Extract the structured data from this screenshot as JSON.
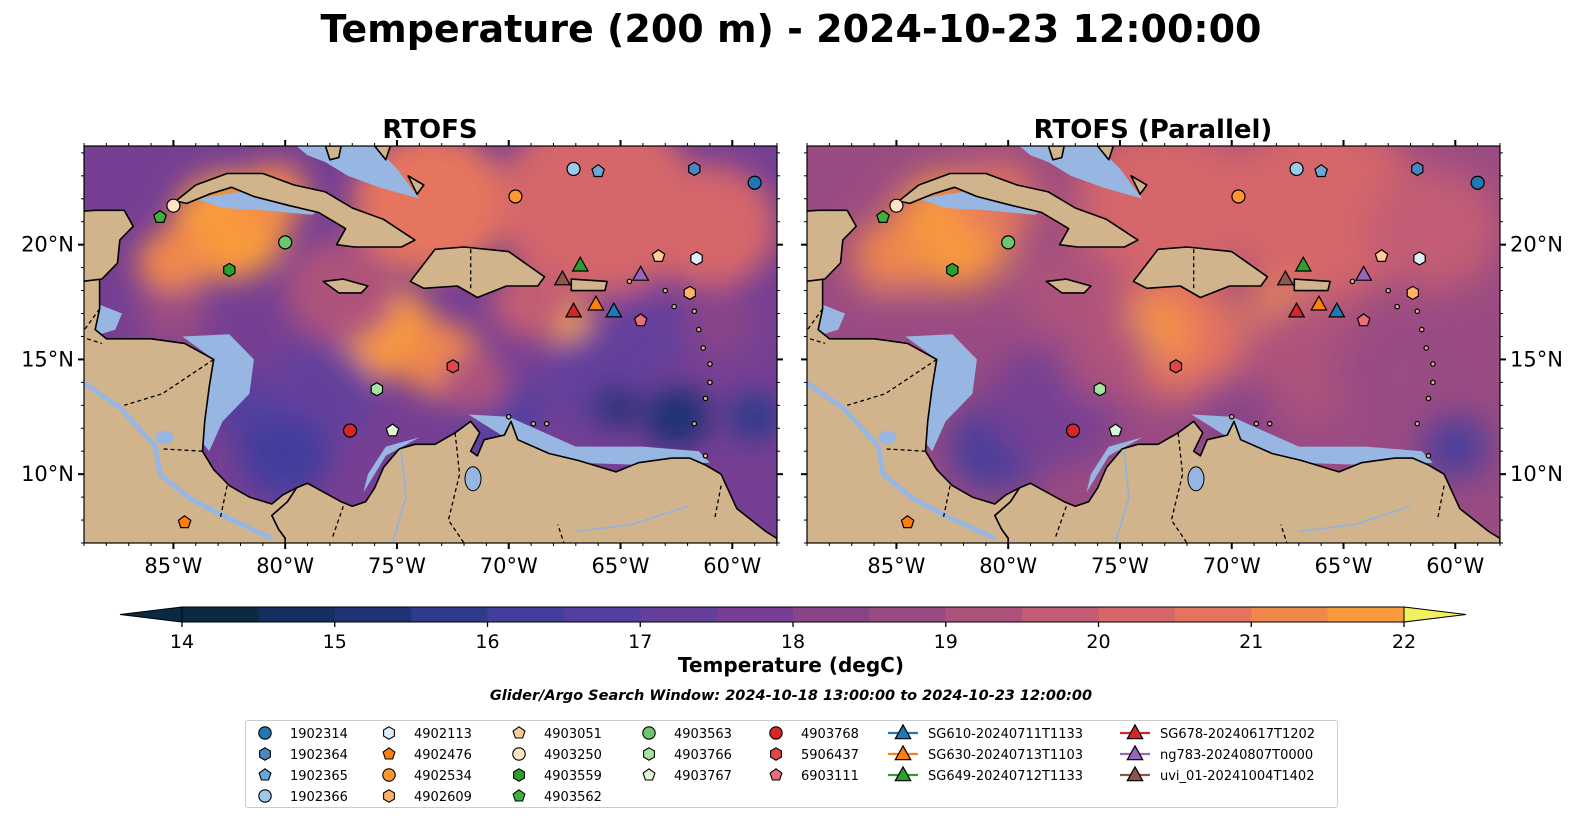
{
  "figure": {
    "title": "Temperature (200 m) - 2024-10-23 12:00:00",
    "search_window": "Glider/Argo Search Window: 2024-10-18 13:00:00 to 2024-10-23 12:00:00"
  },
  "panels": [
    {
      "title": "RTOFS",
      "variant": "operational"
    },
    {
      "title": "RTOFS (Parallel)",
      "variant": "parallel"
    }
  ],
  "map": {
    "extent": {
      "lon_min": -89,
      "lon_max": -58,
      "lat_min": 7,
      "lat_max": 24.3
    },
    "lon_ticks": [
      -85,
      -80,
      -75,
      -70,
      -65,
      -60
    ],
    "lon_tick_labels": [
      "85°W",
      "80°W",
      "75°W",
      "70°W",
      "65°W",
      "60°W"
    ],
    "lat_ticks": [
      10,
      15,
      20
    ],
    "lat_tick_labels": [
      "10°N",
      "15°N",
      "20°N"
    ],
    "land_color": "#d2b48c",
    "shelf_color": "#97b6e1",
    "deep_color": "#0b2235"
  },
  "colorbar": {
    "label": "Temperature (degC)",
    "ticks": [
      14,
      15,
      16,
      17,
      18,
      19,
      20,
      21,
      22
    ],
    "min": 14,
    "max": 22,
    "step": 0.5,
    "colors": [
      "#0a2a43",
      "#132f5e",
      "#1f3374",
      "#2f3a8c",
      "#423e9c",
      "#533f9f",
      "#643f9c",
      "#763f93",
      "#884488",
      "#9a4b82",
      "#ad527b",
      "#c25d74",
      "#d5666a",
      "#e5745e",
      "#f1884b",
      "#f99a3e",
      "#fcab3c",
      "#fcbd42",
      "#f7d651",
      "#f1f060"
    ],
    "extend": "both"
  },
  "legend": {
    "columns": [
      [
        {
          "id": "1902314",
          "marker": "circle",
          "color": "#1f77b4"
        },
        {
          "id": "1902364",
          "marker": "hexagon",
          "color": "#4a86bf"
        },
        {
          "id": "1902365",
          "marker": "pentagon",
          "color": "#6aa6d8"
        },
        {
          "id": "1902366",
          "marker": "circle",
          "color": "#9ecae9"
        }
      ],
      [
        {
          "id": "4902113",
          "marker": "hexagon",
          "color": "#dfeefb"
        },
        {
          "id": "4902476",
          "marker": "pentagon",
          "color": "#ff7f0e"
        },
        {
          "id": "4902534",
          "marker": "circle",
          "color": "#ff9630"
        },
        {
          "id": "4902609",
          "marker": "hexagon",
          "color": "#ffb266"
        }
      ],
      [
        {
          "id": "4903051",
          "marker": "pentagon",
          "color": "#ffcc99"
        },
        {
          "id": "4903250",
          "marker": "circle",
          "color": "#ffe3c7"
        },
        {
          "id": "4903559",
          "marker": "hexagon",
          "color": "#2ca02c"
        },
        {
          "id": "4903562",
          "marker": "pentagon",
          "color": "#3fb13f"
        }
      ],
      [
        {
          "id": "4903563",
          "marker": "circle",
          "color": "#6cc66c"
        },
        {
          "id": "4903766",
          "marker": "hexagon",
          "color": "#a6e2a0"
        },
        {
          "id": "4903767",
          "marker": "pentagon",
          "color": "#dcf6d6"
        }
      ],
      [
        {
          "id": "4903768",
          "marker": "circle",
          "color": "#d62728"
        },
        {
          "id": "5906437",
          "marker": "hexagon",
          "color": "#e04848"
        },
        {
          "id": "6903111",
          "marker": "pentagon",
          "color": "#e8707a"
        }
      ],
      [
        {
          "id": "SG610-20240711T1133",
          "marker": "triangle-line",
          "color": "#1f77b4"
        },
        {
          "id": "SG630-20240713T1103",
          "marker": "triangle-line",
          "color": "#ff7f0e"
        },
        {
          "id": "SG649-20240712T1133",
          "marker": "triangle-line",
          "color": "#2ca02c"
        }
      ],
      [
        {
          "id": "SG678-20240617T1202",
          "marker": "triangle-line",
          "color": "#d62728"
        },
        {
          "id": "ng783-20240807T0000",
          "marker": "triangle-line",
          "color": "#9467bd"
        },
        {
          "id": "uvi_01-20241004T1402",
          "marker": "triangle-line",
          "color": "#8c564b"
        }
      ]
    ]
  },
  "platforms": [
    {
      "id": "1902314",
      "lon": -59.0,
      "lat": 22.7
    },
    {
      "id": "1902364",
      "lon": -61.7,
      "lat": 23.3
    },
    {
      "id": "1902365",
      "lon": -66.0,
      "lat": 23.2
    },
    {
      "id": "1902366",
      "lon": -67.1,
      "lat": 23.3
    },
    {
      "id": "4902113",
      "lon": -61.6,
      "lat": 19.4
    },
    {
      "id": "4902476",
      "lon": -84.5,
      "lat": 7.9
    },
    {
      "id": "4902534",
      "lon": -69.7,
      "lat": 22.1
    },
    {
      "id": "4902609",
      "lon": -61.9,
      "lat": 17.9
    },
    {
      "id": "4903051",
      "lon": -63.3,
      "lat": 19.5
    },
    {
      "id": "4903250",
      "lon": -85.0,
      "lat": 21.7
    },
    {
      "id": "4903559",
      "lon": -82.5,
      "lat": 18.9
    },
    {
      "id": "4903562",
      "lon": -85.6,
      "lat": 21.2
    },
    {
      "id": "4903563",
      "lon": -80.0,
      "lat": 20.1
    },
    {
      "id": "4903766",
      "lon": -75.9,
      "lat": 13.7
    },
    {
      "id": "4903767",
      "lon": -75.2,
      "lat": 11.9
    },
    {
      "id": "4903768",
      "lon": -77.1,
      "lat": 11.9
    },
    {
      "id": "5906437",
      "lon": -72.5,
      "lat": 14.7
    },
    {
      "id": "6903111",
      "lon": -64.1,
      "lat": 16.7
    },
    {
      "id": "SG610-20240711T1133",
      "lon": -65.3,
      "lat": 17.1
    },
    {
      "id": "SG630-20240713T1103",
      "lon": -66.1,
      "lat": 17.4
    },
    {
      "id": "SG649-20240712T1133",
      "lon": -66.8,
      "lat": 19.1
    },
    {
      "id": "SG678-20240617T1202",
      "lon": -67.1,
      "lat": 17.1
    },
    {
      "id": "ng783-20240807T0000",
      "lon": -64.1,
      "lat": 18.7
    },
    {
      "id": "uvi_01-20241004T1402",
      "lon": -67.6,
      "lat": 18.5
    }
  ]
}
